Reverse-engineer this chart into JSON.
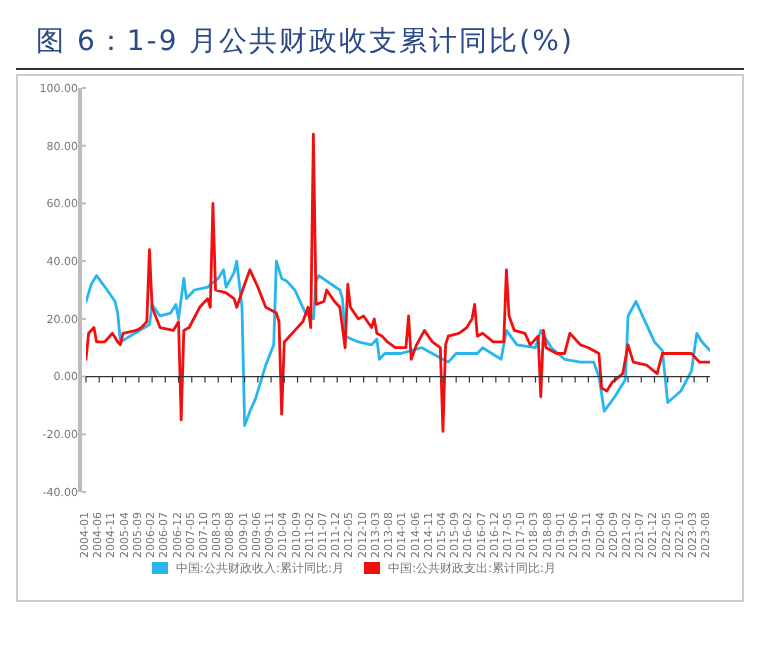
{
  "chart_data": {
    "type": "line",
    "title": "图 6：1-9 月公共财政收支累计同比(%)",
    "xlim": [
      "2004-01",
      "2023-09"
    ],
    "xticks": [
      "2004-01",
      "2004-06",
      "2004-11",
      "2005-04",
      "2005-09",
      "2006-02",
      "2006-07",
      "2006-12",
      "2007-05",
      "2007-10",
      "2008-03",
      "2008-08",
      "2009-01",
      "2009-06",
      "2009-11",
      "2010-04",
      "2010-09",
      "2011-02",
      "2011-07",
      "2011-12",
      "2012-05",
      "2012-10",
      "2013-03",
      "2013-08",
      "2014-01",
      "2014-06",
      "2014-11",
      "2015-04",
      "2015-09",
      "2016-02",
      "2016-07",
      "2016-12",
      "2017-05",
      "2017-10",
      "2018-03",
      "2018-08",
      "2019-01",
      "2019-06",
      "2019-11",
      "2020-04",
      "2020-09",
      "2021-02",
      "2021-07",
      "2021-12",
      "2022-05",
      "2022-10",
      "2023-03",
      "2023-08"
    ],
    "ylim": [
      -40,
      100
    ],
    "yticks": [
      {
        "value": -40,
        "label": "-40.00"
      },
      {
        "value": -20,
        "label": "-20.00"
      },
      {
        "value": 0,
        "label": "0.00"
      },
      {
        "value": 20,
        "label": "20.00"
      },
      {
        "value": 40,
        "label": "40.00"
      },
      {
        "value": 60,
        "label": "60.00"
      },
      {
        "value": 80,
        "label": "80.00"
      },
      {
        "value": 100,
        "label": "100.00"
      }
    ],
    "legend": "bottom",
    "marker": "none",
    "line_style": "solid",
    "series": [
      {
        "name": "中国:公共财政收入:累计同比:月",
        "color": "#29b6ef",
        "x": [
          "2004-01",
          "2004-03",
          "2004-05",
          "2004-09",
          "2004-12",
          "2005-01",
          "2005-02",
          "2006-01",
          "2006-02",
          "2006-05",
          "2006-09",
          "2006-11",
          "2006-12",
          "2007-02",
          "2007-03",
          "2007-06",
          "2007-11",
          "2008-03",
          "2008-05",
          "2008-06",
          "2008-09",
          "2008-10",
          "2008-11",
          "2008-12",
          "2009-01",
          "2009-03",
          "2009-05",
          "2009-07",
          "2009-09",
          "2009-12",
          "2010-01",
          "2010-03",
          "2010-05",
          "2010-08",
          "2010-12",
          "2011-03",
          "2011-04",
          "2011-05",
          "2012-01",
          "2012-02",
          "2012-03",
          "2012-08",
          "2013-01",
          "2013-03",
          "2013-04",
          "2013-06",
          "2013-12",
          "2014-08",
          "2015-04",
          "2015-06",
          "2015-09",
          "2016-05",
          "2016-07",
          "2017-02",
          "2017-04",
          "2017-08",
          "2018-03",
          "2018-05",
          "2018-09",
          "2019-02",
          "2019-08",
          "2020-01",
          "2020-03",
          "2020-05",
          "2020-09",
          "2021-01",
          "2021-02",
          "2021-05",
          "2021-12",
          "2022-03",
          "2022-05",
          "2022-10",
          "2023-02",
          "2023-04",
          "2023-06",
          "2023-09"
        ],
        "values": [
          26,
          32,
          35,
          30,
          26,
          22,
          12,
          18,
          25,
          21,
          22,
          25,
          20,
          34,
          27,
          30,
          31,
          34,
          37,
          31,
          36,
          40,
          32,
          24,
          -17,
          -12,
          -8,
          -2,
          4,
          11,
          40,
          34,
          33,
          30,
          22,
          20,
          33,
          35,
          30,
          27,
          14,
          12,
          11,
          13,
          6,
          8,
          8,
          10,
          6,
          5,
          8,
          8,
          10,
          6,
          16,
          11,
          10,
          16,
          10,
          6,
          5,
          5,
          0,
          -12,
          -7,
          -1,
          21,
          26,
          12,
          9,
          -9,
          -5,
          2,
          15,
          12,
          9
        ]
      },
      {
        "name": "中国:公共财政支出:累计同比:月",
        "color": "#f01010",
        "x": [
          "2004-01",
          "2004-02",
          "2004-04",
          "2004-05",
          "2004-08",
          "2004-11",
          "2005-01",
          "2005-02",
          "2005-03",
          "2005-08",
          "2005-10",
          "2005-12",
          "2006-01",
          "2006-02",
          "2006-05",
          "2006-10",
          "2006-12",
          "2007-01",
          "2007-02",
          "2007-04",
          "2007-08",
          "2007-11",
          "2007-12",
          "2008-01",
          "2008-02",
          "2008-06",
          "2008-09",
          "2008-10",
          "2009-01",
          "2009-03",
          "2009-06",
          "2009-09",
          "2010-01",
          "2010-02",
          "2010-03",
          "2010-04",
          "2010-08",
          "2010-11",
          "2011-01",
          "2011-02",
          "2011-03",
          "2011-04",
          "2011-07",
          "2011-08",
          "2011-11",
          "2012-01",
          "2012-03",
          "2012-04",
          "2012-05",
          "2012-08",
          "2012-10",
          "2013-01",
          "2013-02",
          "2013-03",
          "2013-05",
          "2013-07",
          "2013-10",
          "2014-02",
          "2014-03",
          "2014-04",
          "2014-06",
          "2014-09",
          "2014-12",
          "2015-03",
          "2015-04",
          "2015-05",
          "2015-06",
          "2015-10",
          "2016-01",
          "2016-03",
          "2016-04",
          "2016-05",
          "2016-07",
          "2016-11",
          "2017-03",
          "2017-04",
          "2017-05",
          "2017-07",
          "2017-11",
          "2018-01",
          "2018-04",
          "2018-05",
          "2018-06",
          "2018-07",
          "2018-11",
          "2019-02",
          "2019-04",
          "2019-08",
          "2019-11",
          "2020-03",
          "2020-04",
          "2020-06",
          "2020-08",
          "2020-12",
          "2021-02",
          "2021-04",
          "2021-09",
          "2022-01",
          "2022-03",
          "2022-10",
          "2023-02",
          "2023-05",
          "2023-09"
        ],
        "values": [
          6,
          15,
          17,
          12,
          12,
          15,
          12,
          11,
          15,
          16,
          17,
          19,
          44,
          24,
          17,
          16,
          19,
          -15,
          16,
          17,
          24,
          27,
          24,
          60,
          30,
          29,
          27,
          24,
          32,
          37,
          31,
          24,
          22,
          19,
          -13,
          12,
          16,
          19,
          24,
          17,
          84,
          25,
          26,
          30,
          26,
          24,
          10,
          32,
          24,
          20,
          21,
          17,
          20,
          15,
          14,
          12,
          10,
          10,
          21,
          6,
          11,
          16,
          12,
          10,
          -19,
          11,
          14,
          15,
          17,
          20,
          25,
          14,
          15,
          12,
          12,
          37,
          21,
          16,
          15,
          11,
          14,
          -7,
          16,
          10,
          8,
          8,
          15,
          11,
          10,
          8,
          -4,
          -5,
          -2,
          1,
          11,
          5,
          4,
          1,
          8,
          8,
          8,
          5,
          5
        ]
      }
    ]
  }
}
